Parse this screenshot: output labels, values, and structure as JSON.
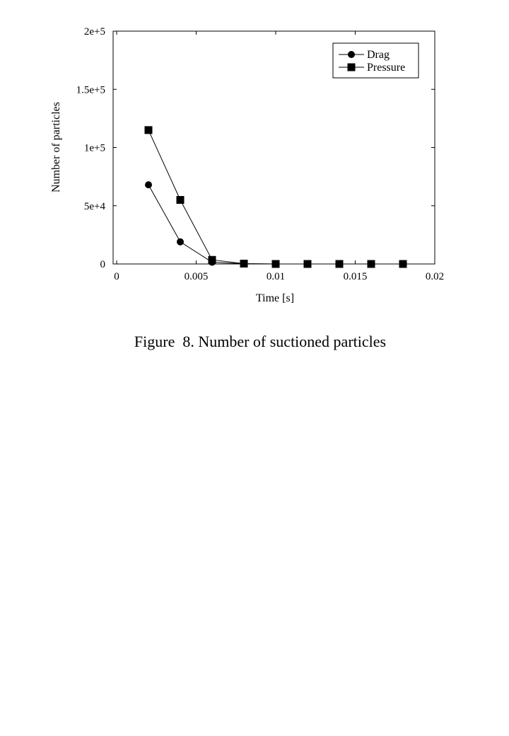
{
  "chart_data": {
    "type": "line",
    "xlabel": "Time [s]",
    "ylabel": "Number of particles",
    "xlim": [
      0,
      0.02
    ],
    "ylim": [
      0,
      200000
    ],
    "x_ticks": [
      0,
      0.005,
      0.01,
      0.015,
      0.02
    ],
    "x_tick_labels": [
      "0",
      "0.005",
      "0.01",
      "0.015",
      "0.02"
    ],
    "y_ticks": [
      0,
      50000,
      100000,
      150000,
      200000
    ],
    "y_tick_labels": [
      "0",
      "5e+4",
      "1e+5",
      "1.5e+5",
      "2e+5"
    ],
    "grid": false,
    "legend_position": "top-right",
    "series": [
      {
        "name": "Drag",
        "marker": "circle",
        "color": "#000000",
        "x": [
          0.002,
          0.004,
          0.006,
          0.008,
          0.01,
          0.012,
          0.014,
          0.016,
          0.018
        ],
        "y": [
          68000,
          19000,
          1500,
          200,
          0,
          0,
          0,
          0,
          0
        ]
      },
      {
        "name": "Pressure",
        "marker": "square",
        "color": "#000000",
        "x": [
          0.002,
          0.004,
          0.006,
          0.008,
          0.01,
          0.012,
          0.014,
          0.016,
          0.018
        ],
        "y": [
          115000,
          55000,
          3500,
          300,
          0,
          0,
          0,
          0,
          0
        ]
      }
    ]
  },
  "caption": "Figure  8. Number of suctioned particles"
}
